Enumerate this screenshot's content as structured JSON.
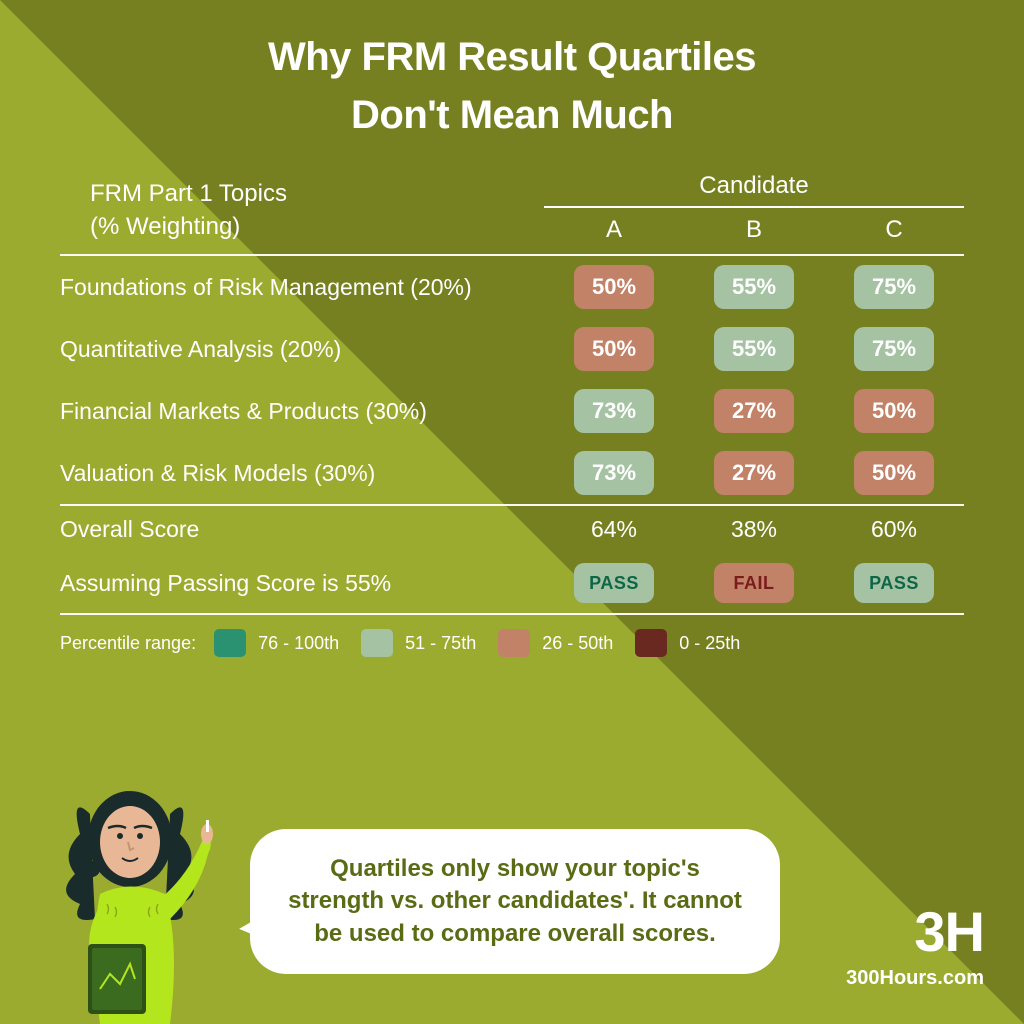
{
  "title_line1": "Why FRM Result Quartiles",
  "title_line2": "Don't Mean Much",
  "table": {
    "topics_header_line1": "FRM Part 1 Topics",
    "topics_header_line2": "(% Weighting)",
    "candidate_header": "Candidate",
    "candidates": [
      "A",
      "B",
      "C"
    ],
    "rows": [
      {
        "topic": "Foundations of Risk Management (20%)",
        "cells": [
          {
            "value": "50%",
            "quartile": "q3"
          },
          {
            "value": "55%",
            "quartile": "q2"
          },
          {
            "value": "75%",
            "quartile": "q2"
          }
        ]
      },
      {
        "topic": "Quantitative Analysis (20%)",
        "cells": [
          {
            "value": "50%",
            "quartile": "q3"
          },
          {
            "value": "55%",
            "quartile": "q2"
          },
          {
            "value": "75%",
            "quartile": "q2"
          }
        ]
      },
      {
        "topic": "Financial Markets & Products (30%)",
        "cells": [
          {
            "value": "73%",
            "quartile": "q2"
          },
          {
            "value": "27%",
            "quartile": "q3"
          },
          {
            "value": "50%",
            "quartile": "q3"
          }
        ]
      },
      {
        "topic": "Valuation & Risk Models (30%)",
        "cells": [
          {
            "value": "73%",
            "quartile": "q2"
          },
          {
            "value": "27%",
            "quartile": "q3"
          },
          {
            "value": "50%",
            "quartile": "q3"
          }
        ]
      }
    ],
    "overall_label": "Overall Score",
    "overall_values": [
      "64%",
      "38%",
      "60%"
    ],
    "passing_label": "Assuming Passing Score is 55%",
    "passing_results": [
      {
        "text": "PASS",
        "status": "pass"
      },
      {
        "text": "FAIL",
        "status": "fail"
      },
      {
        "text": "PASS",
        "status": "pass"
      }
    ]
  },
  "legend": {
    "label": "Percentile range:",
    "items": [
      {
        "quartile": "q1",
        "range": "76 - 100th",
        "color": "#2a9271"
      },
      {
        "quartile": "q2",
        "range": "51 - 75th",
        "color": "#a5c3a3"
      },
      {
        "quartile": "q3",
        "range": "26 - 50th",
        "color": "#c18268"
      },
      {
        "quartile": "q4",
        "range": "0 - 25th",
        "color": "#6a2920"
      }
    ]
  },
  "speech_text": "Quartiles only show your topic's strength vs. other candidates'. It cannot be used to compare overall scores.",
  "brand_logo": "3H",
  "brand_url": "300Hours.com",
  "colors": {
    "background_light": "#9bab2f",
    "background_dark": "#778021",
    "text_white": "#ffffff",
    "speech_text": "#5a6b15"
  }
}
